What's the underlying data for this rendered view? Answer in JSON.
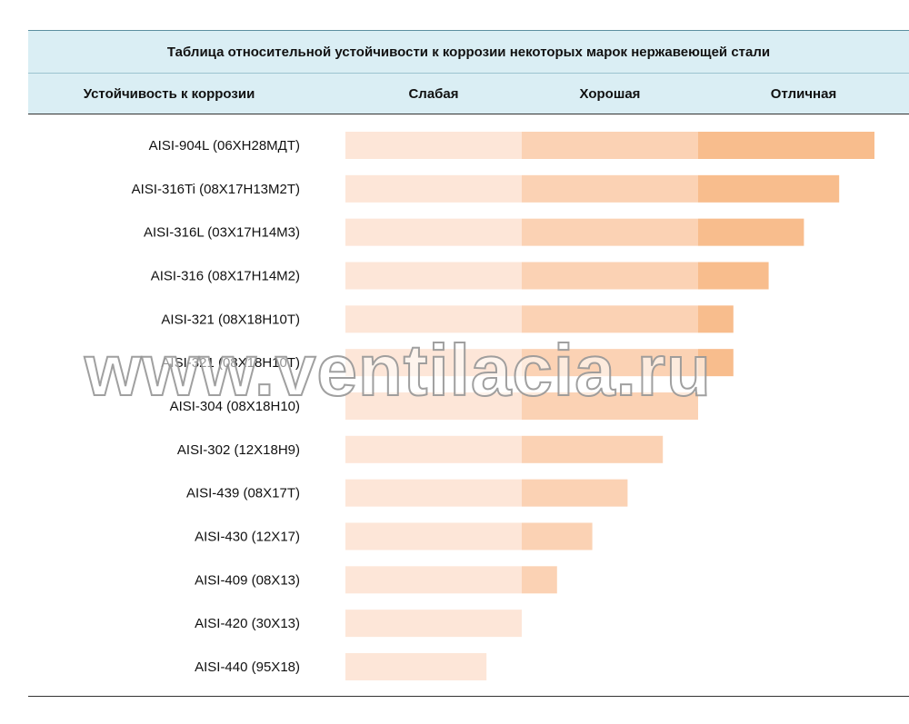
{
  "chart_data": {
    "type": "bar",
    "orientation": "horizontal",
    "title": "Таблица относительной устойчивости к коррозии некоторых марок нержавеющей стали",
    "row_header": "Устойчивость к коррозии",
    "levels": [
      "Слабая",
      "Хорошая",
      "Отличная"
    ],
    "categories": [
      "AISI-904L (06ХН28МДТ)",
      "AISI-316Ti (08Х17Н13М2Т)",
      "AISI-316L (03Х17Н14М3)",
      "AISI-316 (08Х17Н14М2)",
      "AISI-321 (08Х18Н10Т)",
      "AISI-321 (08Х18Н10Т)",
      "AISI-304 (08Х18Н10)",
      "AISI-302 (12Х18Н9)",
      "AISI-439 (08Х17Т)",
      "AISI-430 (12Х17)",
      "AISI-409 (08Х13)",
      "AISI-420 (30Х13)",
      "AISI-440 (95Х18)"
    ],
    "values": [
      3.0,
      2.8,
      2.6,
      2.4,
      2.2,
      2.2,
      2.0,
      1.8,
      1.6,
      1.4,
      1.2,
      1.0,
      0.8
    ],
    "xlim": [
      0,
      3
    ],
    "level_colors": [
      "#fde6d8",
      "#fbd2b4",
      "#f8bd8d"
    ]
  },
  "watermark": "www.ventilacia.ru"
}
